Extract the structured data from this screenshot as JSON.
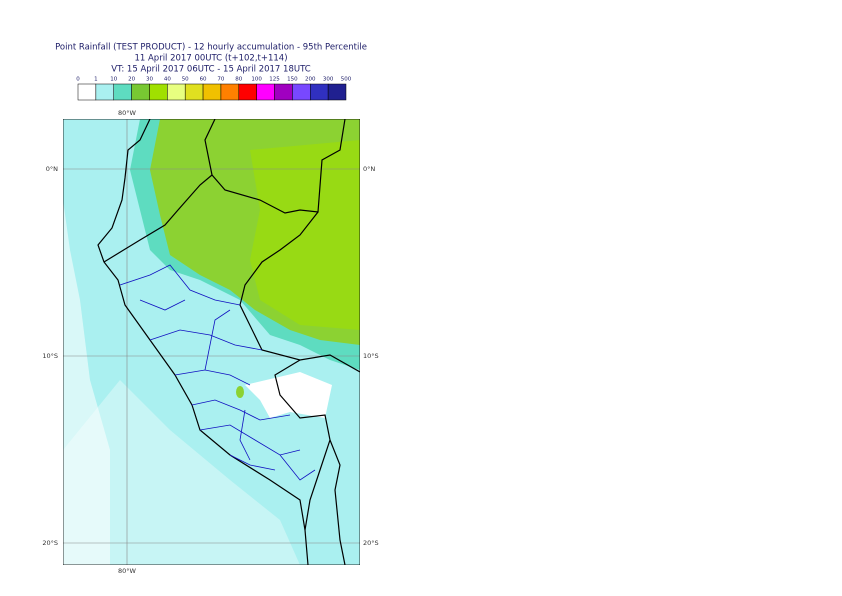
{
  "header": {
    "title": "Point Rainfall (TEST PRODUCT) - 12 hourly accumulation - 95th Percentile",
    "issue": "11 April 2017 00UTC (t+102,t+114)",
    "valid": "VT: 15 April 2017 06UTC - 15 April 2017 18UTC"
  },
  "legend": {
    "bounds": [
      "0",
      "1",
      "10",
      "20",
      "30",
      "40",
      "50",
      "60",
      "70",
      "80",
      "100",
      "125",
      "150",
      "200",
      "300",
      "500"
    ],
    "colors": [
      "#ffffff",
      "#aaf0f0",
      "#5edcc0",
      "#78c832",
      "#a0e000",
      "#e8ff80",
      "#e0e020",
      "#f0c000",
      "#ff8000",
      "#ff0000",
      "#ff00ff",
      "#a000c0",
      "#7848ff",
      "#3030c0",
      "#202090",
      "#101050"
    ]
  },
  "map": {
    "lon_label": "80°W",
    "lat_labels": [
      "0°N",
      "10°S",
      "20°S"
    ]
  }
}
